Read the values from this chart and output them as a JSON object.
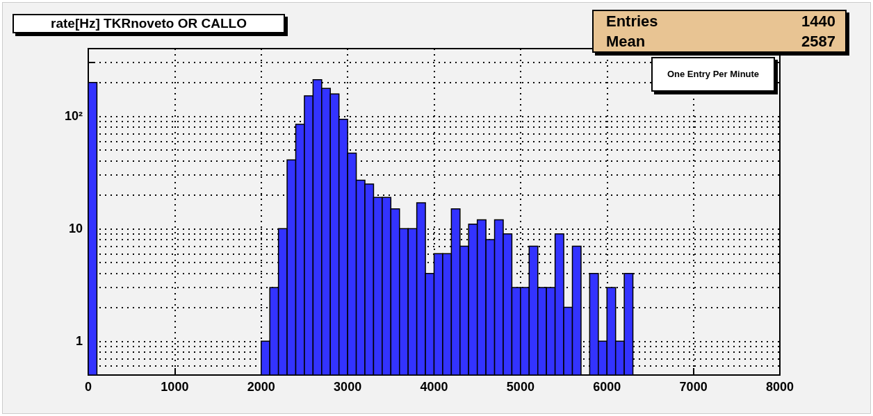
{
  "chart_data": {
    "type": "histogram",
    "title": "rate[Hz] TKRnoveto OR CALLO",
    "bins": [
      0,
      100,
      200,
      300,
      400,
      500,
      600,
      700,
      800,
      900,
      1000,
      1100,
      1200,
      1300,
      1400,
      1500,
      1600,
      1700,
      1800,
      1900,
      2000,
      2100,
      2200,
      2300,
      2400,
      2500,
      2600,
      2700,
      2800,
      2900,
      3000,
      3100,
      3200,
      3300,
      3400,
      3500,
      3600,
      3700,
      3800,
      3900,
      4000,
      4100,
      4200,
      4300,
      4400,
      4500,
      4600,
      4700,
      4800,
      4900,
      5000,
      5100,
      5200,
      5300,
      5400,
      5500,
      5600,
      5700,
      5800,
      5900,
      6000,
      6100,
      6200,
      6300
    ],
    "values": [
      200,
      null,
      null,
      null,
      null,
      null,
      null,
      null,
      null,
      null,
      null,
      null,
      null,
      null,
      null,
      null,
      null,
      null,
      null,
      null,
      1,
      3,
      10,
      41,
      85,
      152,
      212,
      177,
      158,
      94,
      47,
      27,
      25,
      19,
      19,
      15,
      10,
      10,
      17,
      4,
      6,
      6,
      15,
      7,
      11,
      12,
      8,
      12,
      9,
      3,
      3,
      7,
      3,
      3,
      9,
      2,
      7,
      null,
      4,
      1,
      3,
      1,
      4
    ],
    "color": "#3333ff",
    "xlim": [
      0,
      8000
    ],
    "xticks": [
      0,
      1000,
      2000,
      3000,
      4000,
      5000,
      6000,
      7000,
      8000
    ],
    "ylim": [
      0.5,
      400
    ],
    "yticks": [
      {
        "value": 0.6,
        "label": null
      },
      {
        "value": 0.7,
        "label": null
      },
      {
        "value": 0.8,
        "label": null
      },
      {
        "value": 0.9,
        "label": null
      },
      1,
      {
        "value": 2,
        "label": null
      },
      {
        "value": 3,
        "label": null
      },
      {
        "value": 4,
        "label": null
      },
      {
        "value": 5,
        "label": null
      },
      {
        "value": 6,
        "label": null
      },
      {
        "value": 7,
        "label": null
      },
      {
        "value": 8,
        "label": null
      },
      {
        "value": 9,
        "label": null
      },
      10,
      {
        "value": 20,
        "label": null
      },
      {
        "value": 30,
        "label": null
      },
      {
        "value": 40,
        "label": null
      },
      {
        "value": 50,
        "label": null
      },
      {
        "value": 60,
        "label": null
      },
      {
        "value": 70,
        "label": null
      },
      {
        "value": 80,
        "label": null
      },
      {
        "value": 90,
        "label": null
      },
      {
        "value": 100,
        "label": "10²"
      },
      {
        "value": 200,
        "label": null
      },
      {
        "value": 300,
        "label": null
      }
    ],
    "log": "y",
    "grid": true,
    "annotations": [
      "Entries",
      "1440",
      "Mean",
      "2587",
      "One Entry Per Minute"
    ]
  }
}
